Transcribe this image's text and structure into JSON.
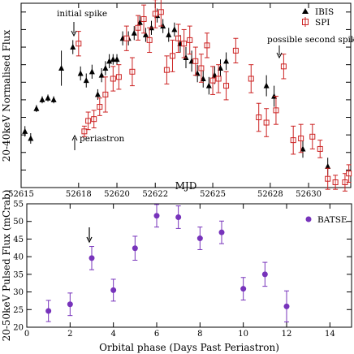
{
  "chart_data": [
    {
      "type": "scatter",
      "xlabel": "MJD",
      "ylabel": "20-40keV Normalised Flux",
      "xlim": [
        52615,
        52632.2
      ],
      "ylim": [
        0,
        1.05
      ],
      "xticks": [
        52615,
        52618,
        52620,
        52622,
        52625,
        52628,
        52630
      ],
      "yticks": [
        0,
        0.1,
        0.2,
        0.3,
        0.4,
        0.5,
        0.6,
        0.7,
        0.8,
        0.9,
        1.0
      ],
      "legend_position": "top-right",
      "annotations": {
        "initial_spike": "initial spike",
        "periastron": "periastron",
        "second_spike": "possible second spike"
      },
      "series": [
        {
          "name": "IBIS",
          "marker": "filled-triangle",
          "color": "#000000",
          "points": [
            [
              52615.2,
              0.32,
              0.03
            ],
            [
              52615.5,
              0.28,
              0.03
            ],
            [
              52615.8,
              0.45,
              0.02
            ],
            [
              52616.1,
              0.5,
              0.02
            ],
            [
              52616.4,
              0.51,
              0.02
            ],
            [
              52616.7,
              0.5,
              0.02
            ],
            [
              52617.1,
              0.68,
              0.1
            ],
            [
              52617.7,
              0.8,
              0.04
            ],
            [
              52618.1,
              0.65,
              0.04
            ],
            [
              52618.4,
              0.61,
              0.04
            ],
            [
              52618.7,
              0.66,
              0.04
            ],
            [
              52619.0,
              0.53,
              0.03
            ],
            [
              52619.2,
              0.64,
              0.04
            ],
            [
              52619.4,
              0.68,
              0.04
            ],
            [
              52619.6,
              0.72,
              0.04
            ],
            [
              52619.8,
              0.73,
              0.03
            ],
            [
              52620.0,
              0.73,
              0.03
            ],
            [
              52620.3,
              0.85,
              0.04
            ],
            [
              52620.6,
              0.85,
              0.04
            ],
            [
              52620.9,
              0.88,
              0.04
            ],
            [
              52621.2,
              0.94,
              0.04
            ],
            [
              52621.5,
              0.87,
              0.04
            ],
            [
              52621.8,
              0.91,
              0.04
            ],
            [
              52622.1,
              0.98,
              0.04
            ],
            [
              52622.4,
              0.92,
              0.04
            ],
            [
              52622.7,
              0.87,
              0.04
            ],
            [
              52623.0,
              0.9,
              0.04
            ],
            [
              52623.3,
              0.82,
              0.05
            ],
            [
              52623.6,
              0.74,
              0.06
            ],
            [
              52623.9,
              0.72,
              0.06
            ],
            [
              52624.2,
              0.65,
              0.05
            ],
            [
              52624.5,
              0.62,
              0.05
            ],
            [
              52624.8,
              0.58,
              0.05
            ],
            [
              52625.1,
              0.64,
              0.05
            ],
            [
              52625.4,
              0.68,
              0.05
            ],
            [
              52625.7,
              0.72,
              0.05
            ],
            [
              52627.8,
              0.58,
              0.06
            ],
            [
              52628.2,
              0.52,
              0.06
            ],
            [
              52629.7,
              0.22,
              0.05
            ],
            [
              52631.0,
              0.12,
              0.05
            ]
          ]
        },
        {
          "name": "SPI",
          "marker": "open-square",
          "color": "#cc2222",
          "points": [
            [
              52618.0,
              0.82,
              0.07
            ],
            [
              52618.3,
              0.32,
              0.03
            ],
            [
              52618.5,
              0.38,
              0.05
            ],
            [
              52618.8,
              0.39,
              0.05
            ],
            [
              52619.1,
              0.46,
              0.05
            ],
            [
              52619.4,
              0.53,
              0.1
            ],
            [
              52619.8,
              0.62,
              0.07
            ],
            [
              52620.1,
              0.63,
              0.07
            ],
            [
              52620.5,
              0.85,
              0.07
            ],
            [
              52620.8,
              0.66,
              0.08
            ],
            [
              52621.1,
              0.91,
              0.07
            ],
            [
              52621.4,
              0.96,
              0.08
            ],
            [
              52621.7,
              0.84,
              0.07
            ],
            [
              52622.0,
              0.99,
              0.08
            ],
            [
              52622.3,
              1.0,
              0.08
            ],
            [
              52622.6,
              0.67,
              0.08
            ],
            [
              52622.9,
              0.75,
              0.09
            ],
            [
              52623.2,
              0.85,
              0.08
            ],
            [
              52623.5,
              0.82,
              0.08
            ],
            [
              52623.8,
              0.84,
              0.08
            ],
            [
              52624.1,
              0.72,
              0.08
            ],
            [
              52624.4,
              0.68,
              0.08
            ],
            [
              52624.7,
              0.81,
              0.07
            ],
            [
              52625.0,
              0.61,
              0.08
            ],
            [
              52625.3,
              0.62,
              0.08
            ],
            [
              52625.7,
              0.58,
              0.08
            ],
            [
              52626.2,
              0.78,
              0.07
            ],
            [
              52627.0,
              0.62,
              0.08
            ],
            [
              52627.4,
              0.4,
              0.08
            ],
            [
              52627.8,
              0.37,
              0.08
            ],
            [
              52628.3,
              0.44,
              0.08
            ],
            [
              52628.7,
              0.69,
              0.07
            ],
            [
              52629.2,
              0.27,
              0.08
            ],
            [
              52629.6,
              0.28,
              0.08
            ],
            [
              52630.2,
              0.29,
              0.07
            ],
            [
              52630.6,
              0.22,
              0.05
            ],
            [
              52631.0,
              0.05,
              0.06
            ],
            [
              52631.4,
              0.03,
              0.04
            ],
            [
              52631.9,
              0.03,
              0.05
            ],
            [
              52632.1,
              0.08,
              0.05
            ]
          ]
        }
      ]
    },
    {
      "type": "scatter",
      "xlabel": "Orbital phase (Days Past Periastron)",
      "ylabel": "20-50keV Pulsed Flux (mCrab)",
      "xlim": [
        0,
        15
      ],
      "ylim": [
        20,
        55
      ],
      "xticks": [
        0,
        2,
        4,
        6,
        8,
        10,
        12,
        14
      ],
      "yticks": [
        20,
        25,
        30,
        35,
        40,
        45,
        50,
        55
      ],
      "legend_position": "top-right",
      "series": [
        {
          "name": "BATSE",
          "marker": "filled-circle",
          "color": "#7733bb",
          "points": [
            [
              1,
              24.6,
              3.0
            ],
            [
              2,
              26.5,
              3.2
            ],
            [
              3,
              39.6,
              3.3
            ],
            [
              4,
              30.5,
              3.1
            ],
            [
              5,
              42.4,
              3.4
            ],
            [
              6,
              51.6,
              3.2
            ],
            [
              7,
              51.2,
              3.2
            ],
            [
              8,
              45.2,
              3.2
            ],
            [
              9,
              46.9,
              3.2
            ],
            [
              10,
              30.9,
              3.2
            ],
            [
              11,
              35.0,
              3.4
            ],
            [
              12,
              25.9,
              4.4
            ]
          ]
        }
      ]
    }
  ]
}
